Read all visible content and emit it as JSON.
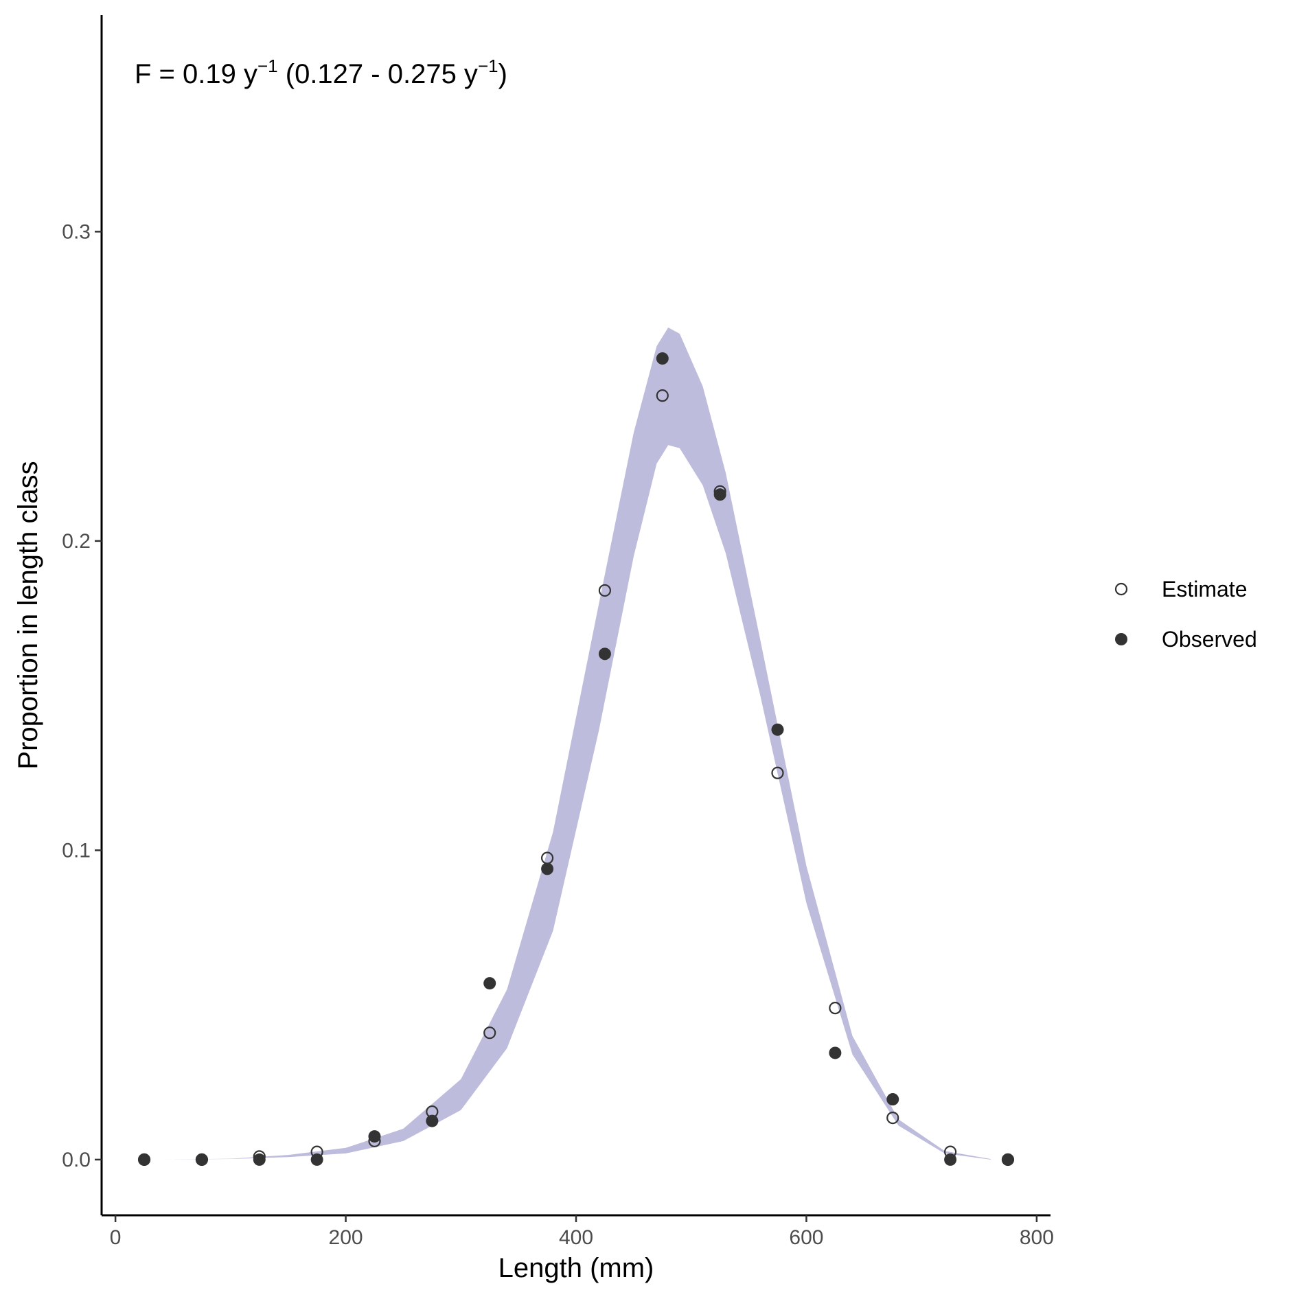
{
  "chart_data": {
    "type": "scatter",
    "annotation": {
      "prefix": "F = 0.19 y",
      "sup1": "−1",
      "middle": " (0.127 - 0.275 y",
      "sup2": "−1",
      "suffix": ")"
    },
    "xlabel": "Length (mm)",
    "ylabel": "Proportion in length class",
    "xlim": [
      -12,
      812
    ],
    "ylim": [
      -0.018,
      0.37
    ],
    "x_ticks": [
      0,
      200,
      400,
      600,
      800
    ],
    "x_tick_labels": [
      "0",
      "200",
      "400",
      "600",
      "800"
    ],
    "y_ticks": [
      0.0,
      0.1,
      0.2,
      0.3
    ],
    "y_tick_labels": [
      "0.0",
      "0.1",
      "0.2",
      "0.3"
    ],
    "grid": false,
    "legend_position": "right",
    "colors": {
      "band": "#bebcdc",
      "points": "#333333",
      "axis": "#000000"
    },
    "series": [
      {
        "name": "Estimate",
        "marker": "open-circle",
        "x": [
          25,
          75,
          125,
          175,
          225,
          275,
          325,
          375,
          425,
          475,
          525,
          575,
          625,
          675,
          725,
          775
        ],
        "y": [
          0.0,
          0.0,
          0.001,
          0.0025,
          0.006,
          0.0155,
          0.041,
          0.0975,
          0.184,
          0.247,
          0.216,
          0.125,
          0.049,
          0.0135,
          0.0025,
          0.0
        ]
      },
      {
        "name": "Observed",
        "marker": "filled-circle",
        "x": [
          25,
          75,
          125,
          175,
          225,
          275,
          325,
          375,
          425,
          475,
          525,
          575,
          625,
          675,
          725,
          775
        ],
        "y": [
          0.0,
          0.0,
          0.0,
          0.0,
          0.0075,
          0.0125,
          0.057,
          0.094,
          0.1635,
          0.259,
          0.215,
          0.139,
          0.0345,
          0.0195,
          0.0,
          0.0
        ]
      }
    ],
    "band": {
      "name": "confidence-band",
      "x": [
        40,
        100,
        150,
        200,
        250,
        300,
        340,
        380,
        420,
        450,
        470,
        480,
        490,
        510,
        530,
        560,
        600,
        640,
        680,
        720,
        760
      ],
      "lower": [
        0.0,
        0.0002,
        0.0008,
        0.002,
        0.006,
        0.016,
        0.036,
        0.074,
        0.139,
        0.195,
        0.225,
        0.231,
        0.23,
        0.218,
        0.196,
        0.15,
        0.083,
        0.034,
        0.011,
        0.002,
        0.0
      ],
      "upper": [
        0.0,
        0.0003,
        0.0015,
        0.0038,
        0.01,
        0.026,
        0.055,
        0.106,
        0.18,
        0.235,
        0.263,
        0.269,
        0.267,
        0.25,
        0.222,
        0.168,
        0.095,
        0.04,
        0.013,
        0.0028,
        0.0002
      ]
    }
  }
}
